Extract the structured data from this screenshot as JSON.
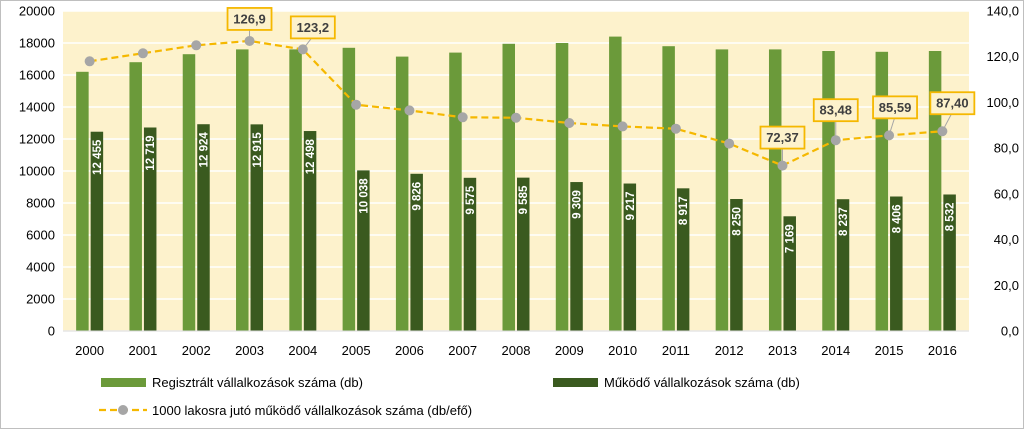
{
  "chart_data": {
    "type": "bar",
    "categories": [
      "2000",
      "2001",
      "2002",
      "2003",
      "2004",
      "2005",
      "2006",
      "2007",
      "2008",
      "2009",
      "2010",
      "2011",
      "2012",
      "2013",
      "2014",
      "2015",
      "2016"
    ],
    "series": [
      {
        "name": "Regisztrált vállalkozások száma (db)",
        "type": "bar",
        "axis": "left",
        "color": "#6b9a3a",
        "values": [
          16200,
          16800,
          17300,
          17600,
          17600,
          17700,
          17150,
          17400,
          17950,
          18000,
          18400,
          17800,
          17600,
          17600,
          17500,
          17450,
          17500
        ]
      },
      {
        "name": "Működő vállalkozások száma (db)",
        "type": "bar",
        "axis": "left",
        "color": "#3a5a1f",
        "values": [
          12455,
          12719,
          12924,
          12915,
          12498,
          10038,
          9826,
          9575,
          9585,
          9309,
          9217,
          8917,
          8250,
          7169,
          8237,
          8406,
          8532
        ],
        "labels": [
          "12 455",
          "12 719",
          "12 924",
          "12 915",
          "12 498",
          "10 038",
          "9 826",
          "9 575",
          "9 585",
          "9 309",
          "9 217",
          "8 917",
          "8 250",
          "7 169",
          "8 237",
          "8 406",
          "8 532"
        ]
      },
      {
        "name": "1000 lakosra jutó működő vállalkozások száma (db/efő)",
        "type": "line",
        "axis": "right",
        "color": "#f5b800",
        "marker_color": "#a6a6a6",
        "values": [
          118.0,
          121.5,
          125.0,
          126.9,
          123.2,
          99.0,
          96.5,
          93.5,
          93.3,
          91.0,
          89.5,
          88.5,
          82.0,
          72.37,
          83.48,
          85.59,
          87.4
        ]
      }
    ],
    "callouts": [
      {
        "index": 3,
        "text": "126,9"
      },
      {
        "index": 4,
        "text": "123,2"
      },
      {
        "index": 13,
        "text": "72,37"
      },
      {
        "index": 14,
        "text": "83,48"
      },
      {
        "index": 15,
        "text": "85,59"
      },
      {
        "index": 16,
        "text": "87,40"
      }
    ],
    "y_left": {
      "min": 0,
      "max": 20000,
      "ticks": [
        "0",
        "2000",
        "4000",
        "6000",
        "8000",
        "10000",
        "12000",
        "14000",
        "16000",
        "18000",
        "20000"
      ]
    },
    "y_right": {
      "min": 0,
      "max": 140,
      "ticks": [
        "0,0",
        "20,0",
        "40,0",
        "60,0",
        "80,0",
        "100,0",
        "120,0",
        "140,0"
      ]
    },
    "plot_background": "#fdf2cc",
    "grid": true,
    "legend_position": "bottom"
  }
}
